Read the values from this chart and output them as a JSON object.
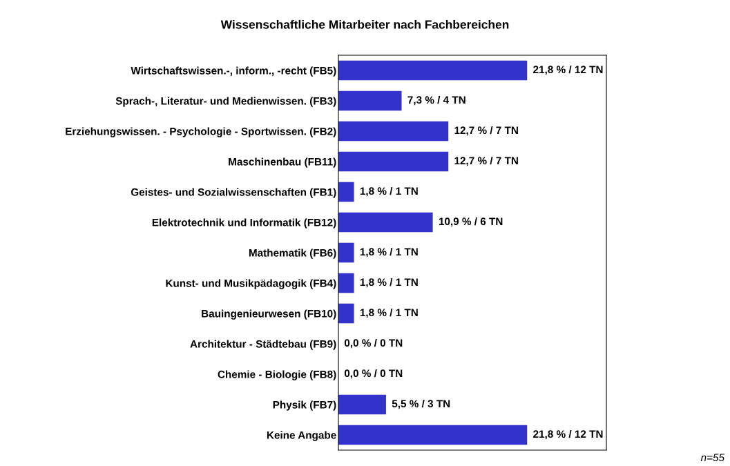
{
  "chart_data": {
    "type": "bar",
    "orientation": "horizontal",
    "title": "Wissenschaftliche Mitarbeiter nach Fachbereichen",
    "categories": [
      "Wirtschaftswissen.-, inform., -recht (FB5)",
      "Sprach-, Literatur- und Medienwissen. (FB3)",
      "Erziehungswissen. - Psychologie - Sportwissen. (FB2)",
      "Maschinenbau (FB11)",
      "Geistes- und Sozialwissenschaften (FB1)",
      "Elektrotechnik und Informatik (FB12)",
      "Mathematik (FB6)",
      "Kunst- und Musikpädagogik (FB4)",
      "Bauingenieurwesen (FB10)",
      "Architektur - Städtebau (FB9)",
      "Chemie - Biologie (FB8)",
      "Physik (FB7)",
      "Keine Angabe"
    ],
    "values": [
      21.8,
      7.3,
      12.7,
      12.7,
      1.8,
      10.9,
      1.8,
      1.8,
      1.8,
      0.0,
      0.0,
      5.5,
      21.8
    ],
    "value_labels": [
      "21,8 % / 12 TN",
      "7,3 % / 4 TN",
      "12,7 % / 7 TN",
      "12,7 % / 7 TN",
      "1,8 % / 1 TN",
      "10,9 % / 6 TN",
      "1,8 % / 1 TN",
      "1,8 % / 1 TN",
      "1,8 % / 1 TN",
      "0,0 % / 0 TN",
      "0,0 % / 0 TN",
      "5,5 % / 3 TN",
      "21,8 % / 12 TN"
    ],
    "color": "#3333cc",
    "annotations": [
      "n=55"
    ],
    "grid": false,
    "legend": false
  }
}
